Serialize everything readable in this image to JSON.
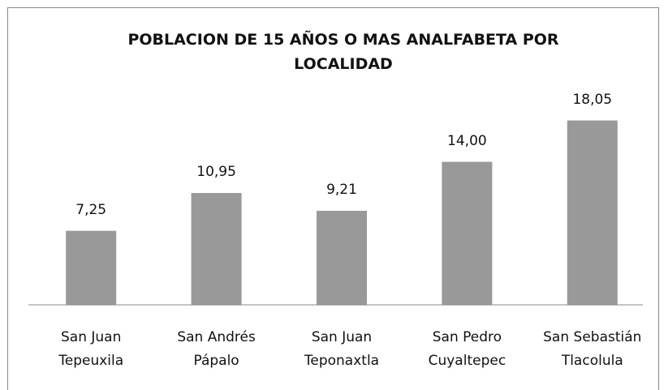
{
  "chart_data": {
    "type": "bar",
    "title": "POBLACION DE 15 AÑOS O MAS ANALFABETA POR LOCALIDAD",
    "categories": [
      "San Juan Tepeuxila",
      "San Andrés Pápalo",
      "San Juan Teponaxtla",
      "San Pedro Cuyaltepec",
      "San Sebastián Tlacolula"
    ],
    "values": [
      7.25,
      10.95,
      9.21,
      14.0,
      18.05
    ],
    "value_labels": [
      "7,25",
      "10,95",
      "9,21",
      "14,00",
      "18,05"
    ],
    "color": "#999999",
    "ylim": [
      0,
      20
    ]
  }
}
